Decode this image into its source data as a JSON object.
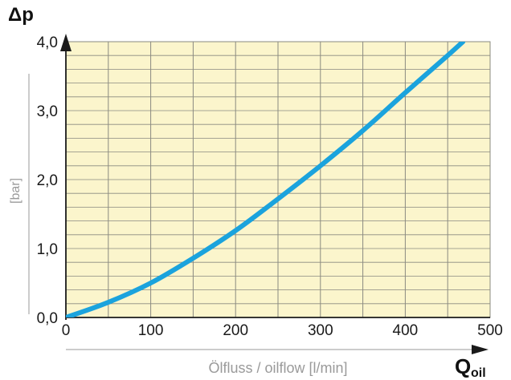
{
  "chart_data": {
    "type": "line",
    "y_symbol": "Δp",
    "y_unit": "[bar]",
    "x_label": "Ölfluss / oilflow [l/min]",
    "x_symbol_main": "Q",
    "x_symbol_sub": "oil",
    "xlim": [
      0,
      500
    ],
    "ylim": [
      0,
      4
    ],
    "x_ticks": [
      {
        "value": 0,
        "label": "0"
      },
      {
        "value": 100,
        "label": "100"
      },
      {
        "value": 200,
        "label": "200"
      },
      {
        "value": 300,
        "label": "300"
      },
      {
        "value": 400,
        "label": "400"
      },
      {
        "value": 500,
        "label": "500"
      }
    ],
    "y_ticks": [
      {
        "value": 0,
        "label": "0,0"
      },
      {
        "value": 1,
        "label": "1,0"
      },
      {
        "value": 2,
        "label": "2,0"
      },
      {
        "value": 3,
        "label": "3,0"
      },
      {
        "value": 4,
        "label": "4,0"
      }
    ],
    "grid": true,
    "series": [
      {
        "color": "#1ba3dd",
        "x": [
          0,
          50,
          100,
          150,
          200,
          250,
          300,
          350,
          400,
          450,
          468
        ],
        "y": [
          0,
          0.22,
          0.5,
          0.86,
          1.26,
          1.72,
          2.2,
          2.71,
          3.26,
          3.8,
          4.0
        ]
      }
    ]
  },
  "colors": {
    "plot_background": "#fbf5cc",
    "grid": "#8a8a80",
    "axis": "#1a1a1a",
    "subtle_axis": "#9a9a9a"
  }
}
